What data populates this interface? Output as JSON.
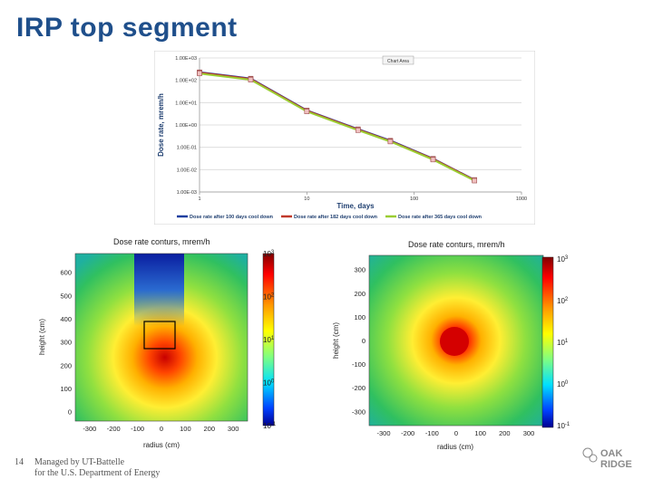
{
  "slide": {
    "title": "IRP top segment",
    "page_number": "14",
    "footer_line1": "Managed by UT-Battelle",
    "footer_line2": "for the U.S. Department of Energy",
    "logo_text": [
      "OAK",
      "RIDGE"
    ]
  },
  "chart_data": [
    {
      "type": "line",
      "xscale": "log",
      "yscale": "log",
      "xlim": [
        1,
        1000
      ],
      "ylim": [
        0.001,
        1000
      ],
      "xlabel": "Time, days",
      "ylabel": "Dose rate, mrem/h",
      "chart_area_label": "Chart Area",
      "x_ticks": [
        "1",
        "10",
        "100",
        "1000"
      ],
      "y_ticks": [
        "1.00E-03",
        "1.00E-02",
        "1.00E-01",
        "1.00E+00",
        "1.00E+01",
        "1.00E+02",
        "1.00E+03"
      ],
      "grid": true,
      "legend": "bottom",
      "x": [
        1,
        3,
        10,
        30,
        60,
        150,
        365
      ],
      "series": [
        {
          "name": "Dose rate after 100 days cool down",
          "color": "#1f3fa0",
          "values": [
            230,
            120,
            4.5,
            0.65,
            0.2,
            0.031,
            0.0035
          ]
        },
        {
          "name": "Dose rate after 182 days cool down",
          "color": "#c0392b",
          "values": [
            220,
            115,
            4.3,
            0.62,
            0.19,
            0.03,
            0.0034
          ]
        },
        {
          "name": "Dose rate after 365 days cool down",
          "color": "#9acd32",
          "values": [
            200,
            105,
            4.0,
            0.58,
            0.18,
            0.028,
            0.0032
          ]
        }
      ]
    },
    {
      "type": "heatmap",
      "title": "Dose rate conturs, mrem/h",
      "xlabel": "radius (cm)",
      "ylabel": "height (cm)",
      "x_ticks": [
        "-300",
        "-200",
        "-100",
        "0",
        "100",
        "200",
        "300"
      ],
      "y_ticks": [
        "0",
        "100",
        "200",
        "300",
        "400",
        "500",
        "600"
      ],
      "xlim": [
        -360,
        360
      ],
      "ylim": [
        -40,
        680
      ],
      "colorbar_ticks": [
        "10^3",
        "10^2",
        "10^1",
        "10^0",
        "10^-1"
      ]
    },
    {
      "type": "heatmap",
      "title": "Dose rate conturs, mrem/h",
      "xlabel": "radius (cm)",
      "ylabel": "height (cm)",
      "x_ticks": [
        "-300",
        "-200",
        "-100",
        "0",
        "100",
        "200",
        "300"
      ],
      "y_ticks": [
        "300",
        "200",
        "100",
        "0",
        "-100",
        "-200",
        "-300"
      ],
      "xlim": [
        -360,
        360
      ],
      "ylim": [
        -360,
        360
      ],
      "colorbar_ticks": [
        "10^3",
        "10^2",
        "10^1",
        "10^0",
        "10^-1"
      ]
    }
  ]
}
